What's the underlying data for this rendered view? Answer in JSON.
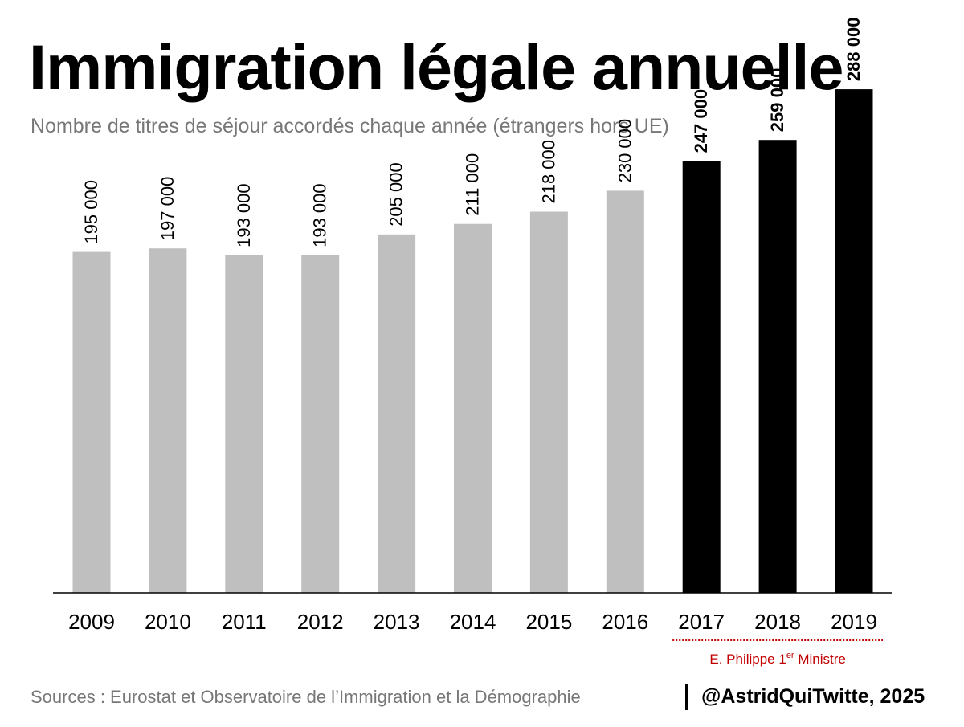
{
  "title": "Immigration légale annuelle",
  "subtitle": "Nombre de titres de séjour accordés chaque année (étrangers hors UE)",
  "sources": "Sources : Eurostat et Observatoire de l’Immigration et la Démographie",
  "credit": "@AstridQuiTwitte, 2025",
  "colors": {
    "gray_bar": "#bfbfbf",
    "black_bar": "#000000",
    "annotation_red": "#c00000",
    "muted_text": "#777777"
  },
  "annotation": {
    "label": "E. Philippe 1",
    "superscript": "er",
    "suffix": " Ministre",
    "range": [
      "2017",
      "2019"
    ]
  },
  "chart_data": {
    "type": "bar",
    "title": "Immigration légale annuelle",
    "subtitle": "Nombre de titres de séjour accordés chaque année (étrangers hors UE)",
    "xlabel": "",
    "ylabel": "",
    "categories": [
      "2009",
      "2010",
      "2011",
      "2012",
      "2013",
      "2014",
      "2015",
      "2016",
      "2017",
      "2018",
      "2019"
    ],
    "values": [
      195000,
      197000,
      193000,
      193000,
      205000,
      211000,
      218000,
      230000,
      247000,
      259000,
      288000
    ],
    "labels": [
      "195 000",
      "197 000",
      "193 000",
      "193 000",
      "205 000",
      "211 000",
      "218 000",
      "230 000",
      "247 000",
      "259 000",
      "288 000"
    ],
    "highlight": [
      false,
      false,
      false,
      false,
      false,
      false,
      false,
      false,
      true,
      true,
      true
    ],
    "ylim": [
      0,
      300000
    ],
    "grid": false,
    "legend": "none"
  }
}
